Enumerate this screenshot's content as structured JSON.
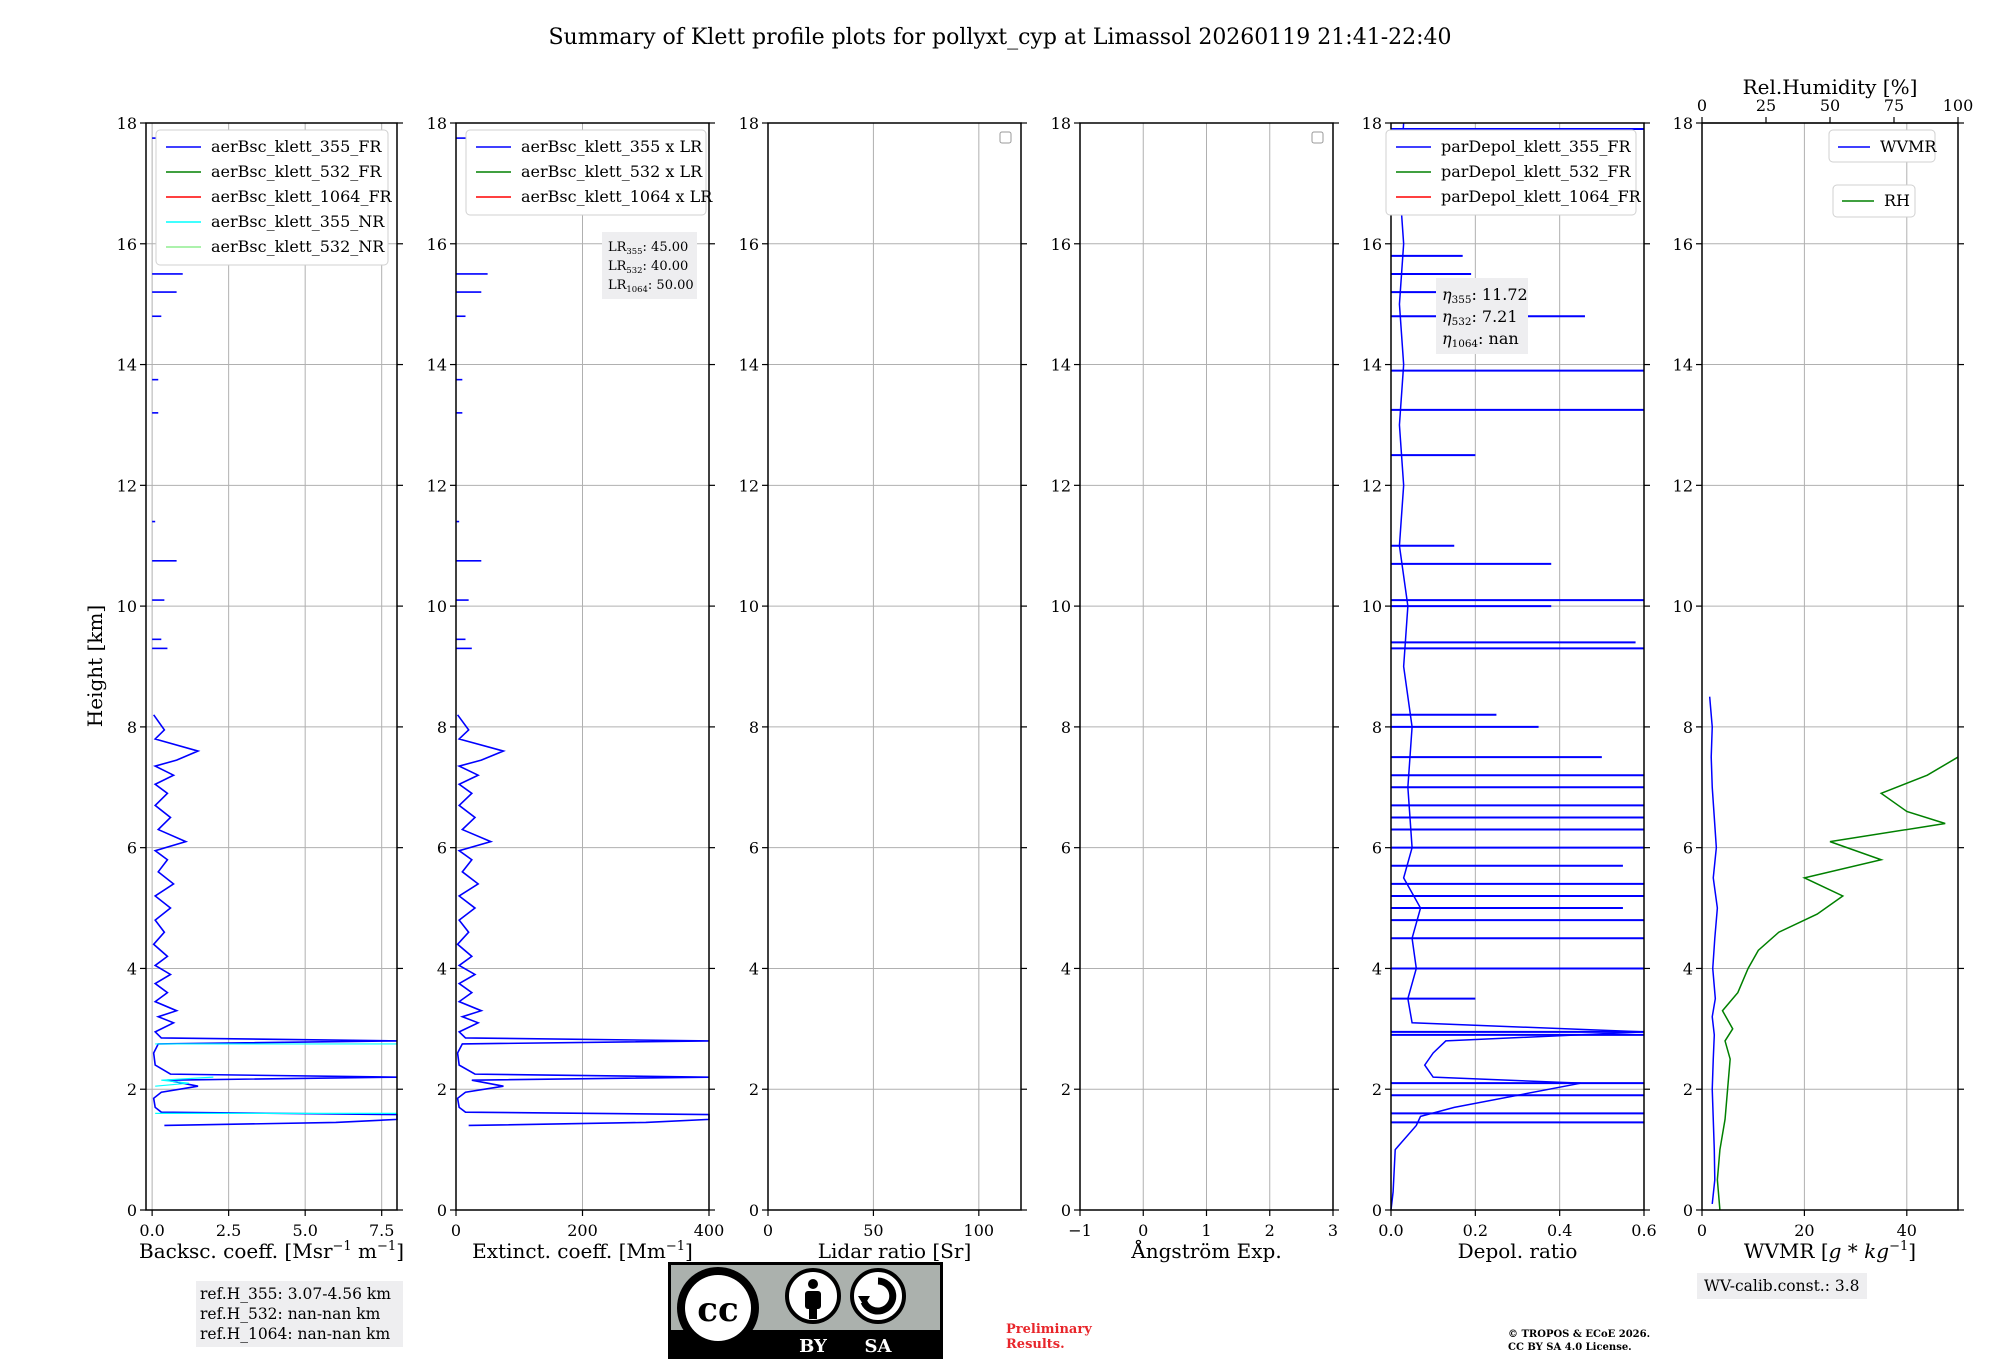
{
  "title": "Summary of Klett profile plots for pollyxt_cyp at Limassol 20260119 21:41-22:40",
  "colors": {
    "b355": "#0000ff",
    "g532": "#008000",
    "r1064": "#ff0000",
    "c355nr": "#00ffff",
    "lg532nr": "#90ee90",
    "grid": "#b0b0b0"
  },
  "y_axis": {
    "label": "Height [km]",
    "ylim": [
      0,
      18
    ],
    "ticks": [
      "0",
      "2",
      "4",
      "6",
      "8",
      "10",
      "12",
      "14",
      "16",
      "18"
    ]
  },
  "chart_data": [
    {
      "type": "line",
      "id": "bsc",
      "xlabel_main": "Backsc. coeff. [Msr",
      "xlabel_sup1": "−1",
      "xlabel_mid": " m",
      "xlabel_sup2": "−1",
      "xlabel_end": "]",
      "xlim": [
        -0.2,
        8.0
      ],
      "xticks": [
        0,
        2.5,
        5.0,
        7.5
      ],
      "xticklabels": [
        "0.0",
        "2.5",
        "5.0",
        "7.5"
      ],
      "legend": [
        "aerBsc_klett_355_FR",
        "aerBsc_klett_532_FR",
        "aerBsc_klett_1064_FR",
        "aerBsc_klett_355_NR",
        "aerBsc_klett_532_NR"
      ],
      "series": [
        {
          "name": "aerBsc_klett_355_FR",
          "color": "b355",
          "points": [
            [
              0.4,
              1.4
            ],
            [
              6,
              1.45
            ],
            [
              8,
              1.5
            ],
            [
              8,
              1.58
            ],
            [
              0.3,
              1.62
            ],
            [
              0.1,
              1.7
            ],
            [
              0.05,
              1.85
            ],
            [
              0.3,
              1.95
            ],
            [
              1.5,
              2.05
            ],
            [
              0.5,
              2.15
            ],
            [
              8,
              2.2
            ],
            [
              0.6,
              2.25
            ],
            [
              0.1,
              2.4
            ],
            [
              0.05,
              2.6
            ],
            [
              0.2,
              2.75
            ],
            [
              8,
              2.8
            ],
            [
              0.3,
              2.85
            ],
            [
              0.1,
              2.95
            ],
            [
              0.7,
              3.1
            ],
            [
              0.2,
              3.2
            ],
            [
              0.8,
              3.3
            ],
            [
              0.1,
              3.45
            ],
            [
              0.5,
              3.6
            ],
            [
              0.1,
              3.75
            ],
            [
              0.6,
              3.9
            ],
            [
              0.1,
              4.05
            ],
            [
              0.5,
              4.2
            ],
            [
              0.05,
              4.4
            ],
            [
              0.4,
              4.6
            ],
            [
              0.1,
              4.8
            ],
            [
              0.6,
              5.0
            ],
            [
              0.1,
              5.2
            ],
            [
              0.7,
              5.4
            ],
            [
              0.2,
              5.6
            ],
            [
              0.5,
              5.8
            ],
            [
              0.1,
              5.95
            ],
            [
              1.1,
              6.1
            ],
            [
              0.2,
              6.3
            ],
            [
              0.6,
              6.5
            ],
            [
              0.1,
              6.7
            ],
            [
              0.5,
              6.9
            ],
            [
              0.1,
              7.05
            ],
            [
              0.7,
              7.2
            ],
            [
              0.1,
              7.35
            ],
            [
              0.8,
              7.45
            ],
            [
              1.5,
              7.6
            ],
            [
              0.1,
              7.8
            ],
            [
              0.4,
              7.95
            ],
            [
              0.05,
              8.2
            ]
          ],
          "segments": [
            [
              [
                0,
                9.3
              ],
              [
                0.5,
                9.3
              ]
            ],
            [
              [
                0,
                9.45
              ],
              [
                0.3,
                9.45
              ]
            ],
            [
              [
                0,
                10.1
              ],
              [
                0.4,
                10.1
              ]
            ],
            [
              [
                0,
                10.75
              ],
              [
                0.8,
                10.75
              ]
            ],
            [
              [
                0,
                11.4
              ],
              [
                0.1,
                11.4
              ]
            ],
            [
              [
                0,
                13.2
              ],
              [
                0.2,
                13.2
              ]
            ],
            [
              [
                0,
                13.75
              ],
              [
                0.2,
                13.75
              ]
            ],
            [
              [
                0,
                14.8
              ],
              [
                0.3,
                14.8
              ]
            ],
            [
              [
                0,
                15.2
              ],
              [
                0.8,
                15.2
              ]
            ],
            [
              [
                0,
                15.5
              ],
              [
                1.0,
                15.5
              ]
            ],
            [
              [
                0,
                17.75
              ],
              [
                0.3,
                17.75
              ]
            ]
          ]
        }
      ],
      "nr_lines": [
        [
          [
            0.1,
            2.05
          ],
          [
            1.2,
            2.1
          ],
          [
            0.3,
            2.15
          ],
          [
            2.0,
            2.2
          ]
        ],
        [
          [
            0.1,
            2.75
          ],
          [
            8,
            2.75
          ]
        ],
        [
          [
            0.1,
            1.6
          ],
          [
            8,
            1.6
          ]
        ]
      ]
    },
    {
      "type": "line",
      "id": "ext",
      "xlabel_main": "Extinct. coeff. [Mm",
      "xlabel_sup1": "−1",
      "xlabel_mid": "",
      "xlabel_sup2": "",
      "xlabel_end": "]",
      "xlim": [
        0,
        400
      ],
      "xticks": [
        0,
        200,
        400
      ],
      "xticklabels": [
        "0",
        "200",
        "400"
      ],
      "legend": [
        "aerBsc_klett_355 x LR",
        "aerBsc_klett_532 x LR",
        "aerBsc_klett_1064 x LR"
      ],
      "annotation": [
        "LR",
        "355",
        ": 45.00",
        "LR",
        "532",
        ": 40.00",
        "LR",
        "1064",
        ": 50.00"
      ]
    },
    {
      "type": "line",
      "id": "lr",
      "xlabel_main": "Lidar ratio [Sr]",
      "xlim": [
        0,
        120
      ],
      "xticks": [
        0,
        50,
        100
      ],
      "xticklabels": [
        "0",
        "50",
        "100"
      ]
    },
    {
      "type": "line",
      "id": "ang",
      "xlabel_main": "Ångström Exp.",
      "xlim": [
        -1,
        3
      ],
      "xticks": [
        -1,
        0,
        1,
        2,
        3
      ],
      "xticklabels": [
        "−1",
        "0",
        "1",
        "2",
        "3"
      ]
    },
    {
      "type": "line",
      "id": "depol",
      "xlabel_main": "Depol. ratio",
      "xlim": [
        0,
        0.6
      ],
      "xticks": [
        0,
        0.2,
        0.4,
        0.6
      ],
      "xticklabels": [
        "0.0",
        "0.2",
        "0.4",
        "0.6"
      ],
      "legend": [
        "parDepol_klett_355_FR",
        "parDepol_klett_532_FR",
        "parDepol_klett_1064_FR"
      ],
      "annotation": [
        "η",
        "355",
        ": 11.72",
        "η",
        "532",
        ": 7.21",
        "η",
        "1064",
        ": nan"
      ]
    },
    {
      "type": "line",
      "id": "wv",
      "xlabel_main": "WVMR [",
      "xlabel_math": "g * kg",
      "xlabel_sup1": "−1",
      "xlabel_end": "]",
      "xlim": [
        0,
        50
      ],
      "xticks": [
        0,
        20,
        40
      ],
      "xticklabels": [
        "0",
        "20",
        "40"
      ],
      "top_label": "Rel.Humidity [%]",
      "top_lim": [
        0,
        100
      ],
      "top_ticks": [
        0,
        25,
        50,
        75,
        100
      ],
      "top_ticklabels": [
        "0",
        "25",
        "50",
        "75",
        "100"
      ],
      "legend_wvmr": "WVMR",
      "legend_rh": "RH"
    }
  ],
  "ref_heights": [
    "ref.H_355: 3.07-4.56 km",
    "ref.H_532: nan-nan km",
    "ref.H_1064: nan-nan km"
  ],
  "wv_calib": "WV-calib.const.: 3.8",
  "license_logo": {
    "cc": "cc",
    "by": "BY",
    "sa": "SA"
  },
  "preliminary": "Preliminary Results.",
  "copyright_line1": "© TROPOS & ECoE 2026.",
  "copyright_line2": "CC BY SA 4.0 License."
}
